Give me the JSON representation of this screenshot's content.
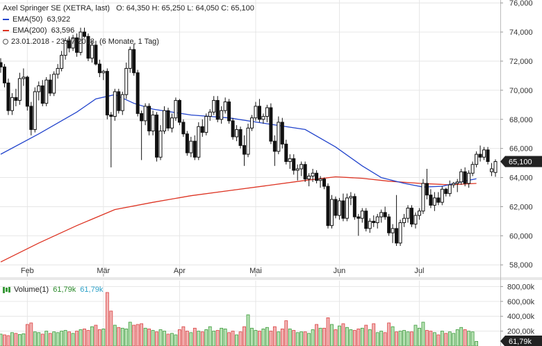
{
  "header": {
    "title_line": "Axel Springer SE (XETRA, last)",
    "ohlc_line": "O: 64,350  H: 65,250  L: 64,050  C: 65,100",
    "ema50_label": "EMA(50)",
    "ema50_value": "63,922",
    "ema200_label": "EMA(200)",
    "ema200_value": "63,596",
    "range_label": "23.01.2018 - 23.07.2018",
    "range_detail": "(6 Monate, 1 Tag)"
  },
  "volume_header": {
    "label": "Volume(1)",
    "value1": "61,79k",
    "value2": "61,79k"
  },
  "colors": {
    "ema50": "#2244cc",
    "ema200": "#dd3322",
    "candle": "#111111",
    "volume_up": "#3a9a3a",
    "volume_up_fill": "#b9e2b5",
    "volume_down": "#d94040",
    "volume_down_fill": "#f2b3b3",
    "grid": "#e6e6e6",
    "price_tag": "#222222"
  },
  "chart_data": {
    "type": "candlestick",
    "title": "Axel Springer SE (XETRA, last)",
    "x_tick_labels": [
      "Feb",
      "Mär",
      "Apr",
      "Mai",
      "Jun",
      "Jul"
    ],
    "x_tick_dates": [
      "2018-02-01",
      "2018-03-01",
      "2018-04-03",
      "2018-05-02",
      "2018-06-01",
      "2018-07-02"
    ],
    "dates": [
      "2018-01-23",
      "2018-01-24",
      "2018-01-25",
      "2018-01-26",
      "2018-01-29",
      "2018-01-30",
      "2018-01-31",
      "2018-02-01",
      "2018-02-02",
      "2018-02-05",
      "2018-02-06",
      "2018-02-07",
      "2018-02-08",
      "2018-02-09",
      "2018-02-12",
      "2018-02-13",
      "2018-02-14",
      "2018-02-15",
      "2018-02-16",
      "2018-02-19",
      "2018-02-20",
      "2018-02-21",
      "2018-02-22",
      "2018-02-23",
      "2018-02-26",
      "2018-02-27",
      "2018-02-28",
      "2018-03-01",
      "2018-03-02",
      "2018-03-05",
      "2018-03-06",
      "2018-03-07",
      "2018-03-08",
      "2018-03-09",
      "2018-03-12",
      "2018-03-13",
      "2018-03-14",
      "2018-03-15",
      "2018-03-16",
      "2018-03-19",
      "2018-03-20",
      "2018-03-21",
      "2018-03-22",
      "2018-03-23",
      "2018-03-26",
      "2018-03-27",
      "2018-03-28",
      "2018-04-03",
      "2018-04-04",
      "2018-04-05",
      "2018-04-06",
      "2018-04-09",
      "2018-04-10",
      "2018-04-11",
      "2018-04-12",
      "2018-04-13",
      "2018-04-16",
      "2018-04-17",
      "2018-04-18",
      "2018-04-19",
      "2018-04-20",
      "2018-04-23",
      "2018-04-24",
      "2018-04-25",
      "2018-04-26",
      "2018-04-27",
      "2018-04-30",
      "2018-05-02",
      "2018-05-03",
      "2018-05-04",
      "2018-05-07",
      "2018-05-08",
      "2018-05-09",
      "2018-05-10",
      "2018-05-11",
      "2018-05-14",
      "2018-05-15",
      "2018-05-16",
      "2018-05-17",
      "2018-05-18",
      "2018-05-21",
      "2018-05-22",
      "2018-05-23",
      "2018-05-24",
      "2018-05-25",
      "2018-05-28",
      "2018-05-29",
      "2018-05-30",
      "2018-05-31",
      "2018-06-01",
      "2018-06-04",
      "2018-06-05",
      "2018-06-06",
      "2018-06-07",
      "2018-06-08",
      "2018-06-11",
      "2018-06-12",
      "2018-06-13",
      "2018-06-14",
      "2018-06-15",
      "2018-06-18",
      "2018-06-19",
      "2018-06-20",
      "2018-06-21",
      "2018-06-22",
      "2018-06-25",
      "2018-06-26",
      "2018-06-27",
      "2018-06-28",
      "2018-06-29",
      "2018-07-02",
      "2018-07-03",
      "2018-07-04",
      "2018-07-05",
      "2018-07-06",
      "2018-07-09",
      "2018-07-10",
      "2018-07-11",
      "2018-07-12",
      "2018-07-13",
      "2018-07-16",
      "2018-07-17",
      "2018-07-18",
      "2018-07-19",
      "2018-07-20",
      "2018-07-23"
    ],
    "ohlc": [
      [
        71.9,
        72.2,
        71.2,
        71.6
      ],
      [
        71.6,
        71.8,
        70.2,
        70.5
      ],
      [
        70.5,
        70.8,
        68.3,
        68.6
      ],
      [
        68.6,
        69.8,
        68.3,
        69.5
      ],
      [
        69.5,
        70.1,
        68.9,
        69.3
      ],
      [
        69.3,
        71.2,
        69.0,
        70.8
      ],
      [
        70.8,
        71.5,
        70.3,
        70.9
      ],
      [
        70.9,
        71.0,
        68.6,
        68.9
      ],
      [
        68.9,
        69.2,
        66.9,
        67.3
      ],
      [
        67.3,
        70.2,
        67.1,
        69.9
      ],
      [
        69.9,
        70.6,
        69.3,
        70.3
      ],
      [
        70.3,
        70.7,
        68.9,
        69.1
      ],
      [
        69.1,
        70.9,
        68.9,
        70.7
      ],
      [
        70.7,
        71.1,
        69.6,
        69.8
      ],
      [
        69.8,
        71.3,
        69.6,
        71.1
      ],
      [
        71.1,
        71.8,
        70.8,
        71.5
      ],
      [
        71.5,
        72.7,
        71.3,
        72.4
      ],
      [
        72.4,
        73.6,
        72.1,
        73.4
      ],
      [
        73.4,
        73.7,
        72.6,
        72.9
      ],
      [
        72.9,
        73.8,
        72.7,
        73.6
      ],
      [
        73.6,
        73.9,
        72.3,
        72.6
      ],
      [
        72.6,
        74.3,
        72.4,
        74.0
      ],
      [
        74.0,
        74.3,
        73.6,
        73.7
      ],
      [
        73.7,
        73.9,
        72.0,
        72.2
      ],
      [
        72.2,
        73.4,
        71.9,
        73.1
      ],
      [
        73.1,
        73.4,
        71.7,
        71.8
      ],
      [
        71.8,
        72.1,
        70.9,
        71.2
      ],
      [
        71.2,
        71.4,
        70.7,
        71.3
      ],
      [
        71.3,
        71.5,
        68.0,
        68.3
      ],
      [
        68.3,
        68.5,
        64.7,
        68.2
      ],
      [
        68.2,
        70.1,
        67.9,
        69.9
      ],
      [
        69.9,
        70.1,
        68.4,
        68.6
      ],
      [
        68.6,
        69.9,
        68.3,
        69.7
      ],
      [
        69.7,
        71.9,
        69.4,
        71.5
      ],
      [
        71.5,
        73.0,
        71.2,
        72.8
      ],
      [
        72.8,
        73.2,
        71.0,
        71.2
      ],
      [
        71.2,
        71.4,
        68.2,
        68.4
      ],
      [
        68.4,
        68.6,
        65.2,
        67.9
      ],
      [
        67.9,
        69.1,
        67.6,
        68.9
      ],
      [
        68.9,
        69.1,
        66.9,
        67.2
      ],
      [
        67.2,
        68.6,
        66.9,
        68.3
      ],
      [
        68.3,
        68.5,
        65.1,
        65.4
      ],
      [
        65.4,
        67.6,
        65.2,
        67.2
      ],
      [
        67.2,
        68.9,
        67.0,
        68.6
      ],
      [
        68.6,
        68.8,
        67.2,
        67.4
      ],
      [
        67.4,
        68.4,
        67.1,
        68.1
      ],
      [
        68.1,
        69.5,
        67.9,
        69.3
      ],
      [
        69.3,
        69.4,
        67.6,
        67.8
      ],
      [
        67.8,
        68.0,
        66.8,
        67.0
      ],
      [
        67.0,
        67.2,
        65.5,
        65.7
      ],
      [
        65.7,
        66.8,
        65.4,
        66.5
      ],
      [
        66.5,
        66.9,
        65.2,
        65.4
      ],
      [
        65.4,
        67.8,
        65.2,
        67.5
      ],
      [
        67.5,
        68.0,
        66.8,
        67.1
      ],
      [
        67.1,
        68.4,
        66.9,
        68.2
      ],
      [
        68.2,
        68.7,
        67.9,
        68.5
      ],
      [
        68.5,
        69.6,
        68.3,
        69.3
      ],
      [
        69.3,
        69.6,
        67.8,
        68.0
      ],
      [
        68.0,
        68.9,
        67.7,
        68.6
      ],
      [
        68.6,
        69.5,
        68.4,
        69.2
      ],
      [
        69.2,
        69.4,
        67.7,
        67.9
      ],
      [
        67.9,
        68.1,
        66.6,
        66.8
      ],
      [
        66.8,
        67.6,
        66.5,
        67.3
      ],
      [
        67.3,
        67.5,
        66.0,
        66.2
      ],
      [
        66.2,
        66.9,
        64.8,
        65.6
      ],
      [
        65.6,
        67.7,
        65.4,
        67.4
      ],
      [
        67.4,
        68.3,
        67.2,
        68.1
      ],
      [
        68.1,
        69.2,
        67.9,
        68.9
      ],
      [
        68.9,
        69.4,
        67.8,
        68.0
      ],
      [
        68.0,
        68.4,
        67.7,
        68.2
      ],
      [
        68.2,
        69.0,
        67.8,
        68.8
      ],
      [
        68.8,
        69.1,
        66.3,
        66.5
      ],
      [
        66.5,
        66.9,
        64.8,
        65.8
      ],
      [
        65.8,
        68.2,
        65.6,
        67.8
      ],
      [
        67.8,
        68.1,
        66.0,
        66.3
      ],
      [
        66.3,
        66.6,
        64.9,
        65.1
      ],
      [
        65.1,
        65.6,
        64.6,
        65.3
      ],
      [
        65.3,
        65.6,
        64.2,
        64.5
      ],
      [
        64.5,
        64.9,
        63.8,
        64.6
      ],
      [
        64.6,
        65.1,
        64.1,
        64.9
      ],
      [
        64.9,
        65.1,
        63.7,
        63.9
      ],
      [
        63.9,
        64.3,
        63.4,
        64.1
      ],
      [
        64.1,
        64.6,
        63.7,
        64.3
      ],
      [
        64.3,
        64.5,
        63.6,
        63.8
      ],
      [
        63.8,
        64.1,
        63.3,
        63.9
      ],
      [
        63.9,
        64.0,
        63.2,
        63.4
      ],
      [
        63.4,
        63.6,
        60.5,
        60.7
      ],
      [
        60.7,
        62.8,
        60.5,
        62.5
      ],
      [
        62.5,
        62.7,
        61.2,
        61.4
      ],
      [
        61.4,
        62.6,
        61.1,
        62.4
      ],
      [
        62.4,
        62.9,
        61.0,
        61.2
      ],
      [
        61.2,
        62.9,
        61.0,
        62.6
      ],
      [
        62.6,
        63.0,
        62.1,
        62.7
      ],
      [
        62.7,
        62.9,
        61.1,
        61.3
      ],
      [
        61.3,
        61.5,
        60.0,
        61.2
      ],
      [
        61.2,
        61.9,
        60.9,
        61.7
      ],
      [
        61.7,
        61.9,
        60.3,
        60.5
      ],
      [
        60.5,
        61.2,
        60.2,
        61.0
      ],
      [
        61.0,
        61.4,
        60.6,
        60.9
      ],
      [
        60.9,
        61.5,
        60.5,
        61.3
      ],
      [
        61.3,
        61.8,
        60.9,
        61.6
      ],
      [
        61.6,
        62.0,
        61.1,
        61.3
      ],
      [
        61.3,
        61.5,
        60.0,
        60.2
      ],
      [
        60.2,
        60.8,
        59.5,
        60.5
      ],
      [
        60.5,
        62.8,
        59.3,
        59.5
      ],
      [
        59.5,
        61.1,
        59.3,
        60.9
      ],
      [
        60.9,
        61.5,
        60.6,
        61.2
      ],
      [
        61.2,
        62.1,
        60.9,
        61.9
      ],
      [
        61.9,
        62.1,
        60.6,
        60.8
      ],
      [
        60.8,
        61.6,
        60.5,
        61.4
      ],
      [
        61.4,
        61.9,
        61.1,
        61.7
      ],
      [
        61.7,
        63.9,
        61.5,
        63.6
      ],
      [
        63.6,
        64.6,
        62.5,
        62.8
      ],
      [
        62.8,
        63.2,
        61.9,
        62.1
      ],
      [
        62.1,
        63.0,
        61.7,
        62.6
      ],
      [
        62.6,
        63.0,
        62.1,
        62.3
      ],
      [
        62.3,
        63.4,
        62.1,
        63.2
      ],
      [
        63.2,
        63.3,
        62.7,
        62.9
      ],
      [
        62.9,
        63.8,
        62.7,
        63.5
      ],
      [
        63.5,
        63.7,
        63.3,
        63.6
      ],
      [
        63.6,
        63.9,
        63.0,
        63.7
      ],
      [
        63.7,
        64.6,
        63.5,
        64.4
      ],
      [
        64.4,
        64.7,
        63.4,
        63.6
      ],
      [
        63.6,
        64.5,
        63.3,
        64.3
      ],
      [
        64.3,
        65.1,
        64.1,
        64.9
      ],
      [
        64.9,
        65.8,
        64.7,
        65.6
      ],
      [
        65.6,
        66.2,
        65.1,
        65.4
      ],
      [
        65.4,
        66.1,
        65.2,
        65.9
      ],
      [
        65.9,
        66.1,
        64.9,
        65.1
      ],
      [
        64.4,
        65.0,
        64.1,
        64.6
      ],
      [
        64.35,
        65.25,
        64.05,
        65.1
      ]
    ],
    "ema50": [
      [
        0,
        65.6
      ],
      [
        10,
        67.0
      ],
      [
        20,
        68.5
      ],
      [
        25,
        69.4
      ],
      [
        30,
        69.7
      ],
      [
        35,
        69.1
      ],
      [
        40,
        68.7
      ],
      [
        50,
        68.3
      ],
      [
        60,
        68.1
      ],
      [
        70,
        67.7
      ],
      [
        80,
        67.3
      ],
      [
        88,
        66.1
      ],
      [
        95,
        64.8
      ],
      [
        100,
        64.0
      ],
      [
        106,
        63.6
      ],
      [
        111,
        63.35
      ],
      [
        116,
        63.4
      ],
      [
        121,
        63.7
      ],
      [
        125,
        63.92
      ]
    ],
    "ema200": [
      [
        0,
        58.2
      ],
      [
        10,
        59.5
      ],
      [
        20,
        60.7
      ],
      [
        30,
        61.8
      ],
      [
        40,
        62.3
      ],
      [
        50,
        62.75
      ],
      [
        60,
        63.1
      ],
      [
        70,
        63.45
      ],
      [
        80,
        63.8
      ],
      [
        88,
        64.05
      ],
      [
        95,
        63.95
      ],
      [
        102,
        63.75
      ],
      [
        110,
        63.6
      ],
      [
        118,
        63.5
      ],
      [
        125,
        63.596
      ]
    ],
    "volume": [
      160,
      150,
      140,
      180,
      170,
      155,
      165,
      290,
      310,
      190,
      180,
      160,
      200,
      170,
      190,
      180,
      200,
      210,
      190,
      170,
      200,
      220,
      230,
      210,
      260,
      280,
      220,
      230,
      720,
      470,
      280,
      250,
      240,
      230,
      320,
      280,
      290,
      300,
      240,
      230,
      210,
      190,
      220,
      200,
      160,
      170,
      150,
      220,
      260,
      200,
      180,
      240,
      200,
      190,
      220,
      260,
      200,
      210,
      240,
      230,
      180,
      200,
      150,
      190,
      260,
      420,
      240,
      210,
      200,
      230,
      250,
      200,
      260,
      190,
      230,
      340,
      230,
      210,
      180,
      190,
      190,
      170,
      220,
      290,
      240,
      240,
      380,
      290,
      220,
      270,
      300,
      250,
      220,
      210,
      230,
      240,
      280,
      220,
      300,
      180,
      200,
      180,
      310,
      260,
      190,
      200,
      210,
      190,
      190,
      280,
      240,
      320,
      210,
      200,
      180,
      150,
      200,
      170,
      190,
      170,
      220,
      250,
      220,
      200,
      190,
      62
    ],
    "y_ticks": [
      58,
      60,
      62,
      64,
      66,
      68,
      70,
      72,
      74,
      76
    ],
    "y_tick_labels": [
      "58,000",
      "60,000",
      "62,000",
      "64,000",
      "66,000",
      "68,000",
      "70,000",
      "72,000",
      "74,000",
      "76,000"
    ],
    "volume_ticks": [
      200,
      400,
      600,
      800
    ],
    "volume_tick_labels": [
      "200,00k",
      "400,00k",
      "600,00k",
      "800,00k"
    ],
    "ylim": [
      57.2,
      76.2
    ],
    "volume_max": 860,
    "last_price_label": "65,100",
    "last_volume_label": "61,79k",
    "grid": true
  }
}
